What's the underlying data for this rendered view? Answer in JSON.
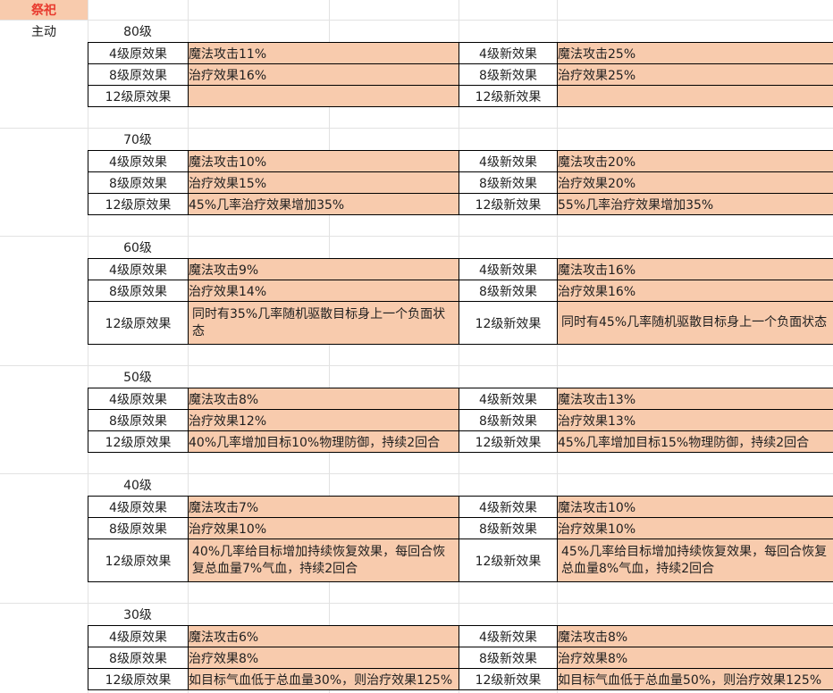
{
  "sheet": {
    "title": "祭祀",
    "mode": "主动"
  },
  "colors": {
    "cell_fill": "#F8CBAD",
    "title_text": "#E8392D",
    "grid_line": "#E2E2E2",
    "table_border": "#000000",
    "body_text": "#1F1F1F"
  },
  "sections": [
    {
      "level": "80级",
      "rows": [
        {
          "orig_label": "4级原效果",
          "orig_value": "魔法攻击11%",
          "new_label": "4级新效果",
          "new_value": "魔法攻击25%",
          "tall": false
        },
        {
          "orig_label": "8级原效果",
          "orig_value": "治疗效果16%",
          "new_label": "8级新效果",
          "new_value": "治疗效果25%",
          "tall": false
        },
        {
          "orig_label": "12级原效果",
          "orig_value": "",
          "new_label": "12级新效果",
          "new_value": "",
          "tall": false
        }
      ]
    },
    {
      "level": "70级",
      "rows": [
        {
          "orig_label": "4级原效果",
          "orig_value": "魔法攻击10%",
          "new_label": "4级新效果",
          "new_value": "魔法攻击20%",
          "tall": false
        },
        {
          "orig_label": "8级原效果",
          "orig_value": "治疗效果15%",
          "new_label": "8级新效果",
          "new_value": "治疗效果20%",
          "tall": false
        },
        {
          "orig_label": "12级原效果",
          "orig_value": "45%几率治疗效果增加35%",
          "new_label": "12级新效果",
          "new_value": "55%几率治疗效果增加35%",
          "tall": false
        }
      ]
    },
    {
      "level": "60级",
      "rows": [
        {
          "orig_label": "4级原效果",
          "orig_value": "魔法攻击9%",
          "new_label": "4级新效果",
          "new_value": "魔法攻击16%",
          "tall": false
        },
        {
          "orig_label": "8级原效果",
          "orig_value": "治疗效果14%",
          "new_label": "8级新效果",
          "new_value": "治疗效果16%",
          "tall": false
        },
        {
          "orig_label": "12级原效果",
          "orig_value": "同时有35%几率随机驱散目标身上一个负面状态",
          "new_label": "12级新效果",
          "new_value": "同时有45%几率随机驱散目标身上一个负面状态",
          "tall": true
        }
      ]
    },
    {
      "level": "50级",
      "rows": [
        {
          "orig_label": "4级原效果",
          "orig_value": "魔法攻击8%",
          "new_label": "4级新效果",
          "new_value": "魔法攻击13%",
          "tall": false
        },
        {
          "orig_label": "8级原效果",
          "orig_value": "治疗效果12%",
          "new_label": "8级新效果",
          "new_value": "治疗效果13%",
          "tall": false
        },
        {
          "orig_label": "12级原效果",
          "orig_value": "40%几率增加目标10%物理防御，持续2回合",
          "new_label": "12级新效果",
          "new_value": "45%几率增加目标15%物理防御，持续2回合",
          "tall": false
        }
      ]
    },
    {
      "level": "40级",
      "rows": [
        {
          "orig_label": "4级原效果",
          "orig_value": "魔法攻击7%",
          "new_label": "4级新效果",
          "new_value": "魔法攻击10%",
          "tall": false
        },
        {
          "orig_label": "8级原效果",
          "orig_value": "治疗效果10%",
          "new_label": "8级新效果",
          "new_value": "治疗效果10%",
          "tall": false
        },
        {
          "orig_label": "12级原效果",
          "orig_value": "40%几率给目标增加持续恢复效果，每回合恢复总血量7%气血，持续2回合",
          "new_label": "12级新效果",
          "new_value": "45%几率给目标增加持续恢复效果，每回合恢复总血量8%气血，持续2回合",
          "tall": true
        }
      ]
    },
    {
      "level": "30级",
      "rows": [
        {
          "orig_label": "4级原效果",
          "orig_value": "魔法攻击6%",
          "new_label": "4级新效果",
          "new_value": "魔法攻击8%",
          "tall": false
        },
        {
          "orig_label": "8级原效果",
          "orig_value": "治疗效果8%",
          "new_label": "8级新效果",
          "new_value": "治疗效果8%",
          "tall": false
        },
        {
          "orig_label": "12级原效果",
          "orig_value": "如目标气血低于总血量30%，则治疗效果125%",
          "new_label": "12级新效果",
          "new_value": "如目标气血低于总血量50%，则治疗效果125%",
          "tall": false
        }
      ]
    }
  ]
}
